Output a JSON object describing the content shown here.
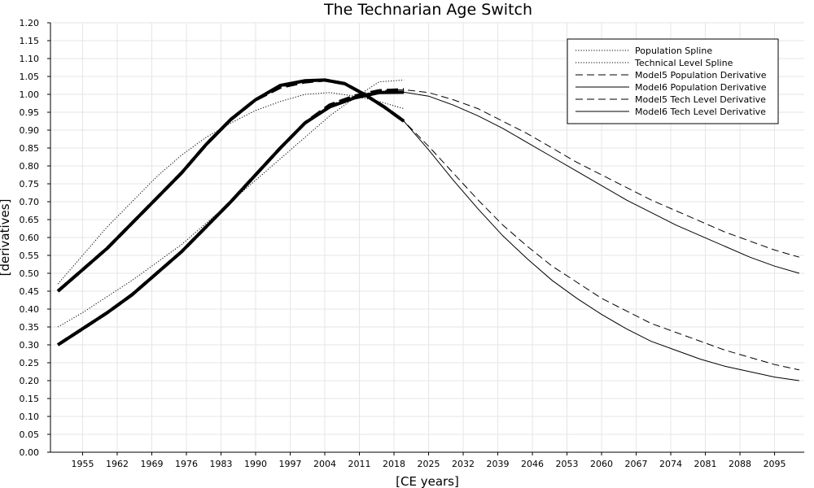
{
  "chart_data": {
    "type": "line",
    "title": "The Technarian Age Switch",
    "xlabel": "[CE years]",
    "ylabel": "[derivatives]",
    "xlim": [
      1948.5,
      2101
    ],
    "ylim": [
      0,
      1.2
    ],
    "grid": true,
    "legend_position": "top-right",
    "x_ticks": [
      1955,
      1962,
      1969,
      1976,
      1983,
      1990,
      1997,
      2004,
      2011,
      2018,
      2025,
      2032,
      2039,
      2046,
      2053,
      2060,
      2067,
      2074,
      2081,
      2088,
      2095
    ],
    "y_ticks": [
      "0.00",
      "0.05",
      "0.10",
      "0.15",
      "0.20",
      "0.25",
      "0.30",
      "0.35",
      "0.40",
      "0.45",
      "0.50",
      "0.55",
      "0.60",
      "0.65",
      "0.70",
      "0.75",
      "0.80",
      "0.85",
      "0.90",
      "0.95",
      "1.00",
      "1.05",
      "1.10",
      "1.15",
      "1.20"
    ],
    "series": [
      {
        "name": "Population Spline",
        "style": "dotted",
        "color": "#000000",
        "x": [
          1950,
          1955,
          1960,
          1965,
          1970,
          1975,
          1980,
          1985,
          1990,
          1995,
          2000,
          2005,
          2010,
          2015,
          2020
        ],
        "y": [
          0.47,
          0.55,
          0.63,
          0.7,
          0.77,
          0.83,
          0.88,
          0.92,
          0.955,
          0.98,
          1.0,
          1.005,
          0.995,
          0.98,
          0.96
        ]
      },
      {
        "name": "Technical Level Spline",
        "style": "dotted",
        "color": "#000000",
        "x": [
          1950,
          1955,
          1960,
          1965,
          1970,
          1975,
          1980,
          1985,
          1990,
          1995,
          2000,
          2005,
          2010,
          2015,
          2020
        ],
        "y": [
          0.35,
          0.39,
          0.435,
          0.48,
          0.53,
          0.58,
          0.64,
          0.7,
          0.76,
          0.82,
          0.88,
          0.94,
          0.99,
          1.035,
          1.04
        ]
      },
      {
        "name": "Model5 Population Derivative",
        "style": "dashed",
        "color": "#000000",
        "x": [
          1950,
          1955,
          1960,
          1965,
          1970,
          1975,
          1980,
          1985,
          1990,
          1995,
          2000,
          2004,
          2008,
          2012,
          2016,
          2020,
          2025,
          2030,
          2035,
          2040,
          2045,
          2050,
          2055,
          2060,
          2065,
          2070,
          2075,
          2080,
          2085,
          2090,
          2095,
          2100
        ],
        "y": [
          0.45,
          0.51,
          0.57,
          0.64,
          0.71,
          0.78,
          0.86,
          0.93,
          0.985,
          1.02,
          1.035,
          1.04,
          1.03,
          1.0,
          0.965,
          0.925,
          0.855,
          0.78,
          0.705,
          0.635,
          0.575,
          0.52,
          0.475,
          0.43,
          0.395,
          0.36,
          0.335,
          0.31,
          0.285,
          0.265,
          0.245,
          0.23
        ]
      },
      {
        "name": "Model6 Population Derivative",
        "style": "solid",
        "color": "#000000",
        "x": [
          1950,
          1955,
          1960,
          1965,
          1970,
          1975,
          1980,
          1985,
          1990,
          1995,
          2000,
          2004,
          2008,
          2012,
          2016,
          2020,
          2025,
          2030,
          2035,
          2040,
          2045,
          2050,
          2055,
          2060,
          2065,
          2070,
          2075,
          2080,
          2085,
          2090,
          2095,
          2100
        ],
        "y": [
          0.45,
          0.51,
          0.57,
          0.64,
          0.71,
          0.78,
          0.86,
          0.93,
          0.985,
          1.025,
          1.038,
          1.04,
          1.03,
          1.0,
          0.965,
          0.925,
          0.845,
          0.76,
          0.68,
          0.605,
          0.54,
          0.48,
          0.43,
          0.385,
          0.345,
          0.31,
          0.285,
          0.26,
          0.24,
          0.225,
          0.21,
          0.2
        ]
      },
      {
        "name": "Model5 Tech Level Derivative",
        "style": "dashed",
        "color": "#000000",
        "x": [
          1950,
          1955,
          1960,
          1965,
          1970,
          1975,
          1980,
          1985,
          1990,
          1995,
          2000,
          2005,
          2010,
          2015,
          2020,
          2025,
          2030,
          2035,
          2040,
          2045,
          2050,
          2055,
          2060,
          2065,
          2070,
          2075,
          2080,
          2085,
          2090,
          2095,
          2100
        ],
        "y": [
          0.3,
          0.345,
          0.39,
          0.44,
          0.5,
          0.56,
          0.63,
          0.7,
          0.775,
          0.85,
          0.92,
          0.97,
          0.995,
          1.01,
          1.013,
          1.005,
          0.985,
          0.96,
          0.925,
          0.89,
          0.85,
          0.81,
          0.775,
          0.74,
          0.705,
          0.675,
          0.645,
          0.615,
          0.59,
          0.565,
          0.545
        ]
      },
      {
        "name": "Model6 Tech Level Derivative",
        "style": "solid",
        "color": "#000000",
        "x": [
          1950,
          1955,
          1960,
          1965,
          1970,
          1975,
          1980,
          1985,
          1990,
          1995,
          2000,
          2005,
          2010,
          2015,
          2020,
          2025,
          2030,
          2035,
          2040,
          2045,
          2050,
          2055,
          2060,
          2065,
          2070,
          2075,
          2080,
          2085,
          2090,
          2095,
          2100
        ],
        "y": [
          0.3,
          0.345,
          0.39,
          0.44,
          0.5,
          0.56,
          0.63,
          0.7,
          0.775,
          0.85,
          0.92,
          0.965,
          0.99,
          1.005,
          1.006,
          0.995,
          0.97,
          0.94,
          0.905,
          0.865,
          0.825,
          0.785,
          0.745,
          0.705,
          0.67,
          0.635,
          0.605,
          0.575,
          0.545,
          0.52,
          0.5
        ]
      }
    ]
  }
}
